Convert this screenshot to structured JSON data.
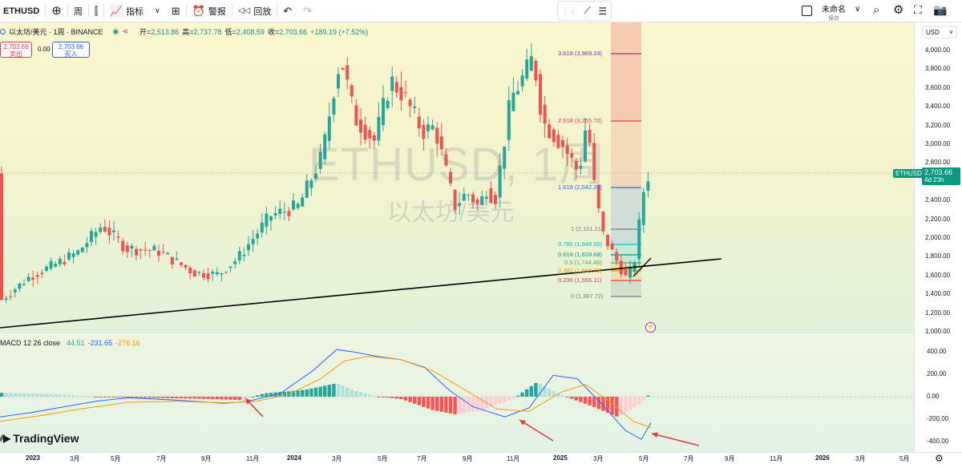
{
  "toolbar": {
    "symbol": "ETHUSD",
    "interval": "周",
    "indicators": "指标",
    "alerts": "警报",
    "replay": "回放",
    "layout_name": "未命名",
    "layout_sub": "保存"
  },
  "legend": {
    "title": "以太坊/美元 · 1周 · BINANCE",
    "open_label": "开=",
    "open": "2,513.86",
    "high_label": "高=",
    "high": "2,737.78",
    "low_label": "低=",
    "low": "2,408.59",
    "close_label": "收=",
    "close": "2,703.66",
    "change": "+189.19 (+7.52%)",
    "sell_price": "2,703.66",
    "sell_label": "卖出",
    "spread": "0.00",
    "buy_price": "2,703.66",
    "buy_label": "买入"
  },
  "watermark": {
    "line1": "ETHUSD, 1周",
    "line2": "以太坊/美元"
  },
  "currency": "USD",
  "price_axis": [
    "4,000.00",
    "3,800.00",
    "3,600.00",
    "3,400.00",
    "3,200.00",
    "3,000.00",
    "2,800.00",
    "2,600.00",
    "2,400.00",
    "2,200.00",
    "2,000.00",
    "1,800.00",
    "1,600.00",
    "1,400.00",
    "1,200.00",
    "1,000.00"
  ],
  "macd_axis": [
    "400.00",
    "200.00",
    "0.00",
    "-200.00",
    "-400.00"
  ],
  "time_axis": [
    "2023",
    "3月",
    "5月",
    "7月",
    "9月",
    "11月",
    "2024",
    "3月",
    "5月",
    "7月",
    "9月",
    "11月",
    "2025",
    "3月",
    "5月",
    "7月",
    "9月",
    "11月",
    "2026",
    "3月",
    "5月"
  ],
  "last_price": {
    "symbol": "ETHUSD",
    "price": "2,703.66",
    "countdown": "4d 23h"
  },
  "fib_levels": [
    {
      "text": "3.618 (3,969.24)",
      "color": "#9c27b0"
    },
    {
      "text": "2.618 (3,255.72)",
      "color": "#f23645"
    },
    {
      "text": "1.618 (2,542.20)",
      "color": "#2962ff"
    },
    {
      "text": "1 (2,101.21)",
      "color": "#787b86"
    },
    {
      "text": "0.786 (1,948.55)",
      "color": "#00bcd4"
    },
    {
      "text": "0.618 (1,828.68)",
      "color": "#089981"
    },
    {
      "text": "0.5 (1,744.48)",
      "color": "#4caf50"
    },
    {
      "text": "0.382 (1,660.29)",
      "color": "#ff9800"
    },
    {
      "text": "0.236 (1,556.11)",
      "color": "#f23645"
    },
    {
      "text": "0 (1,387.72)",
      "color": "#787b86"
    }
  ],
  "macd": {
    "title": "MACD 12 26 close",
    "hist": "44.51",
    "macd": "-231.65",
    "signal": "-276.16"
  },
  "brand": "TradingView",
  "colors": {
    "up": "#26a69a",
    "down": "#ef5350",
    "macd_line": "#2962ff",
    "signal_line": "#ff9800"
  }
}
